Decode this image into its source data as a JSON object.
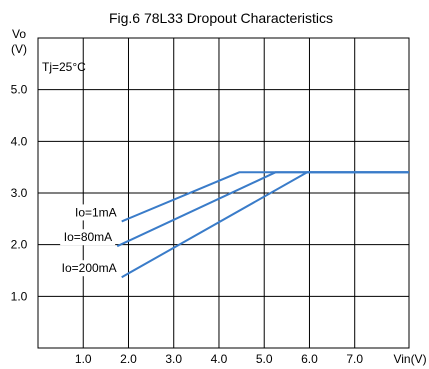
{
  "chart_data": {
    "type": "line",
    "title": "Fig.6 78L33 Dropout Characteristics",
    "ylabel_top": "Vo",
    "ylabel_unit": "(V)",
    "xlabel": "Vin(V)",
    "annotation": "Tj=25°C",
    "xlim": [
      0,
      8.2
    ],
    "ylim": [
      0,
      6
    ],
    "x_ticks": [
      {
        "v": 1,
        "label": "1.0"
      },
      {
        "v": 2,
        "label": "2.0"
      },
      {
        "v": 3,
        "label": "3.0"
      },
      {
        "v": 4,
        "label": "4.0"
      },
      {
        "v": 5,
        "label": "5.0"
      },
      {
        "v": 6,
        "label": "6.0"
      },
      {
        "v": 7,
        "label": "7.0"
      }
    ],
    "y_ticks": [
      {
        "v": 1,
        "label": "1.0"
      },
      {
        "v": 2,
        "label": "2.0"
      },
      {
        "v": 3,
        "label": "3.0"
      },
      {
        "v": 4,
        "label": "4.0"
      },
      {
        "v": 5,
        "label": "5.0"
      }
    ],
    "grid": true,
    "line_color": "#3a7cc9",
    "series": [
      {
        "name": "Io=1mA",
        "points": [
          [
            1.85,
            2.45
          ],
          [
            4.45,
            3.4
          ],
          [
            8.2,
            3.4
          ]
        ]
      },
      {
        "name": "Io=80mA",
        "points": [
          [
            1.75,
            1.97
          ],
          [
            5.25,
            3.4
          ],
          [
            8.2,
            3.4
          ]
        ]
      },
      {
        "name": "Io=200mA",
        "points": [
          [
            1.85,
            1.37
          ],
          [
            5.95,
            3.4
          ],
          [
            8.2,
            3.4
          ]
        ]
      }
    ]
  }
}
